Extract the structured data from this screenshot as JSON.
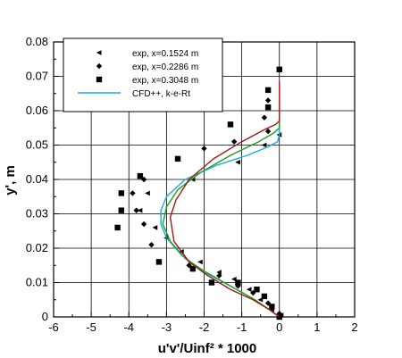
{
  "chart_data": {
    "type": "scatter",
    "xlabel": "u'v'/Uinf² * 1000",
    "ylabel": "y', m",
    "xlim": [
      -6,
      2
    ],
    "ylim": [
      0,
      0.08
    ],
    "x_ticks": [
      -6,
      -5,
      -4,
      -3,
      -2,
      -1,
      0,
      1,
      2
    ],
    "x_tick_labels": [
      "-6",
      "-5",
      "-4",
      "-3",
      "-2",
      "-1",
      "0",
      "1",
      "2"
    ],
    "y_ticks": [
      0,
      0.01,
      0.02,
      0.03,
      0.04,
      0.05,
      0.06,
      0.07,
      0.08
    ],
    "y_tick_labels": [
      "0",
      "0.01",
      "0.02",
      "0.03",
      "0.04",
      "0.05",
      "0.06",
      "0.07",
      "0.08"
    ],
    "grid": true,
    "legend_position": "top-left",
    "series": [
      {
        "name": "exp, x=0.1524 m",
        "kind": "marker",
        "marker": "triangle-left",
        "color": "#000000",
        "points": [
          [
            0.05,
            0.0005
          ],
          [
            -0.2,
            0.002
          ],
          [
            -0.5,
            0.005
          ],
          [
            -0.8,
            0.008
          ],
          [
            -1.2,
            0.011
          ],
          [
            -1.6,
            0.013
          ],
          [
            -2.1,
            0.016
          ],
          [
            -2.6,
            0.019
          ],
          [
            -3.0,
            0.023
          ],
          [
            -3.3,
            0.026
          ],
          [
            -3.7,
            0.031
          ],
          [
            -3.5,
            0.036
          ],
          [
            -2.3,
            0.04
          ],
          [
            -1.1,
            0.045
          ],
          [
            -0.4,
            0.05
          ],
          [
            0.0,
            0.053
          ]
        ]
      },
      {
        "name": "exp, x=0.2286 m",
        "kind": "marker",
        "marker": "diamond",
        "color": "#000000",
        "points": [
          [
            0.0,
            0.001
          ],
          [
            -0.3,
            0.004
          ],
          [
            -0.7,
            0.007
          ],
          [
            -1.1,
            0.009
          ],
          [
            -1.6,
            0.012
          ],
          [
            -2.4,
            0.015
          ],
          [
            -3.4,
            0.021
          ],
          [
            -3.6,
            0.027
          ],
          [
            -3.8,
            0.031
          ],
          [
            -3.9,
            0.036
          ],
          [
            -3.6,
            0.04
          ],
          [
            -2.0,
            0.049
          ],
          [
            -1.2,
            0.051
          ],
          [
            -0.3,
            0.054
          ],
          [
            -0.4,
            0.058
          ],
          [
            -0.3,
            0.063
          ]
        ]
      },
      {
        "name": "exp, x=0.3048 m",
        "kind": "marker",
        "marker": "square",
        "color": "#000000",
        "points": [
          [
            0.0,
            0.0
          ],
          [
            -0.2,
            0.003
          ],
          [
            -0.4,
            0.006
          ],
          [
            -0.6,
            0.008
          ],
          [
            -1.1,
            0.01
          ],
          [
            -1.8,
            0.01
          ],
          [
            -2.3,
            0.014
          ],
          [
            -3.2,
            0.016
          ],
          [
            -4.3,
            0.026
          ],
          [
            -4.2,
            0.031
          ],
          [
            -4.2,
            0.036
          ],
          [
            -3.7,
            0.041
          ],
          [
            -2.7,
            0.046
          ],
          [
            -1.3,
            0.056
          ],
          [
            -0.3,
            0.061
          ],
          [
            -0.3,
            0.066
          ],
          [
            0.0,
            0.072
          ]
        ]
      },
      {
        "name": "CFD++, k-e-Rt",
        "kind": "line",
        "color": "#17aee0",
        "points": [
          [
            0.0,
            0.0
          ],
          [
            -0.25,
            0.002
          ],
          [
            -0.65,
            0.005
          ],
          [
            -1.3,
            0.009
          ],
          [
            -2.0,
            0.013
          ],
          [
            -2.6,
            0.018
          ],
          [
            -3.0,
            0.023
          ],
          [
            -3.15,
            0.027
          ],
          [
            -3.15,
            0.031
          ],
          [
            -3.0,
            0.035
          ],
          [
            -2.5,
            0.04
          ],
          [
            -1.7,
            0.044
          ],
          [
            -0.85,
            0.047
          ],
          [
            -0.3,
            0.0495
          ],
          [
            -0.05,
            0.051
          ],
          [
            0.0,
            0.053
          ],
          [
            0.0,
            0.06
          ]
        ]
      },
      {
        "name": "",
        "kind": "line",
        "color": "#1aa11a",
        "points": [
          [
            0.0,
            0.0
          ],
          [
            -0.25,
            0.002
          ],
          [
            -0.65,
            0.005
          ],
          [
            -1.3,
            0.009
          ],
          [
            -1.95,
            0.013
          ],
          [
            -2.5,
            0.017
          ],
          [
            -2.9,
            0.022
          ],
          [
            -3.1,
            0.027
          ],
          [
            -3.0,
            0.032
          ],
          [
            -2.7,
            0.037
          ],
          [
            -2.1,
            0.042
          ],
          [
            -1.3,
            0.047
          ],
          [
            -0.55,
            0.051
          ],
          [
            -0.15,
            0.0535
          ],
          [
            0.0,
            0.055
          ],
          [
            0.0,
            0.06
          ]
        ]
      },
      {
        "name": "",
        "kind": "line",
        "color": "#a01818",
        "points": [
          [
            0.0,
            0.0
          ],
          [
            -0.25,
            0.002
          ],
          [
            -0.7,
            0.005
          ],
          [
            -1.3,
            0.008
          ],
          [
            -1.9,
            0.012
          ],
          [
            -2.4,
            0.016
          ],
          [
            -2.8,
            0.022
          ],
          [
            -2.9,
            0.029
          ],
          [
            -2.75,
            0.034
          ],
          [
            -2.4,
            0.04
          ],
          [
            -1.75,
            0.046
          ],
          [
            -1.0,
            0.051
          ],
          [
            -0.4,
            0.0545
          ],
          [
            -0.1,
            0.056
          ],
          [
            0.0,
            0.057
          ],
          [
            0.0,
            0.0685
          ]
        ]
      }
    ]
  }
}
